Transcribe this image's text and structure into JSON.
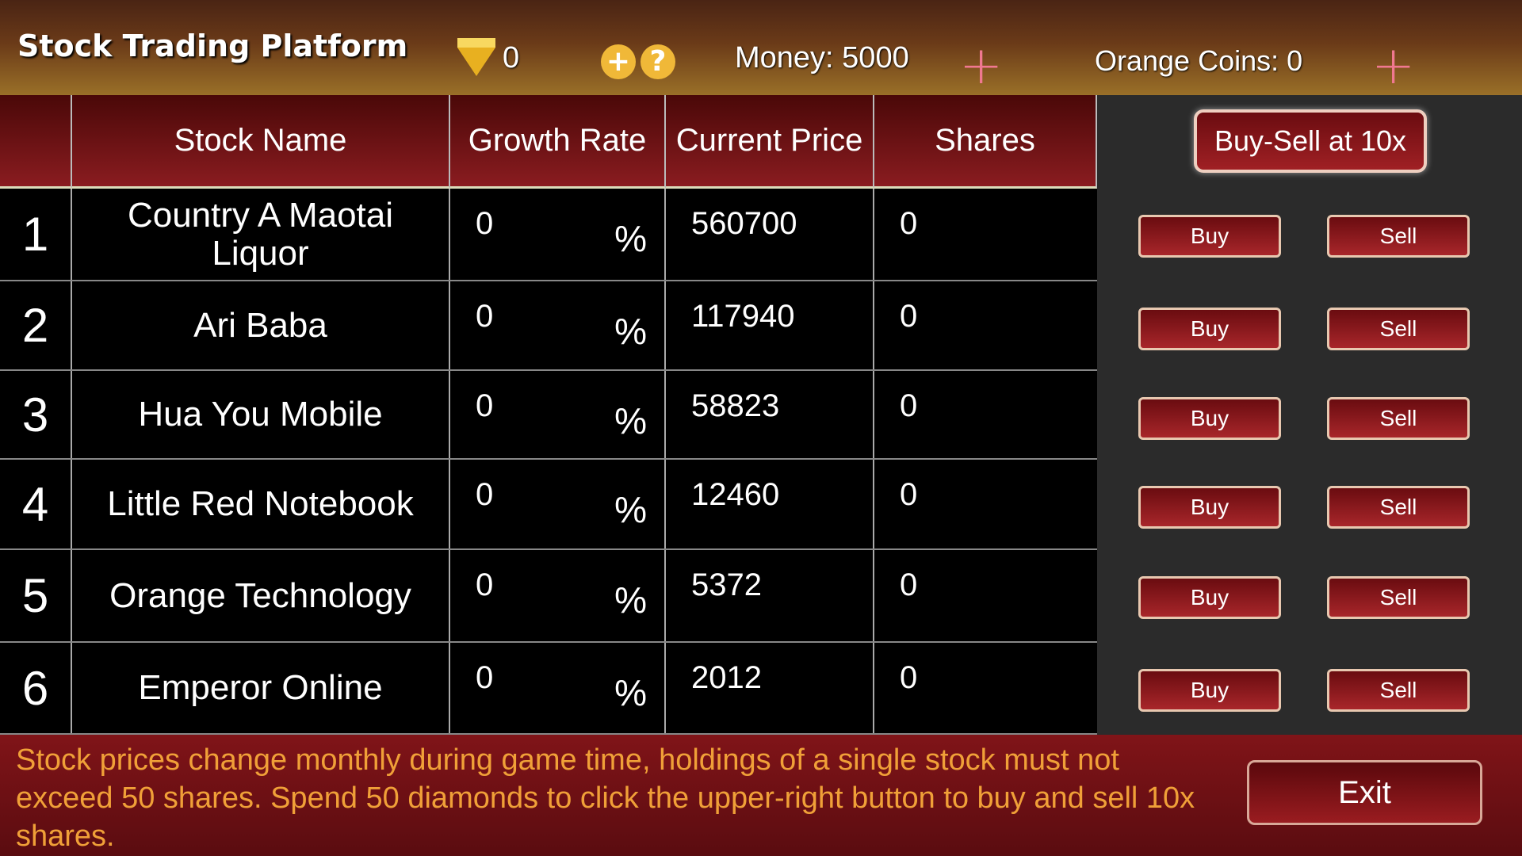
{
  "header": {
    "title": "Stock Trading Platform",
    "diamonds": "0",
    "money": "Money: 5000",
    "orange_coins": "Orange Coins: 0",
    "add_icon": "+",
    "help_icon": "?",
    "plus_icon": "+"
  },
  "table": {
    "columns": [
      "Stock Name",
      "Growth Rate",
      "Current Price",
      "Shares"
    ],
    "rows": [
      {
        "index": "1",
        "name": "Country A Maotai Liquor",
        "growth": "0",
        "pct": "%",
        "price": "560700",
        "shares": "0"
      },
      {
        "index": "2",
        "name": "Ari Baba",
        "growth": "0",
        "pct": "%",
        "price": "117940",
        "shares": "0"
      },
      {
        "index": "3",
        "name": "Hua You Mobile",
        "growth": "0",
        "pct": "%",
        "price": "58823",
        "shares": "0"
      },
      {
        "index": "4",
        "name": "Little Red Notebook",
        "growth": "0",
        "pct": "%",
        "price": "12460",
        "shares": "0"
      },
      {
        "index": "5",
        "name": "Orange Technology",
        "growth": "0",
        "pct": "%",
        "price": "5372",
        "shares": "0"
      },
      {
        "index": "6",
        "name": "Emperor Online",
        "growth": "0",
        "pct": "%",
        "price": "2012",
        "shares": "0"
      }
    ]
  },
  "panel": {
    "multiplier_label": "Buy-Sell at 10x",
    "buy_label": "Buy",
    "sell_label": "Sell"
  },
  "footer": {
    "note": "Stock prices change monthly during game time, holdings of a single stock must not exceed 50 shares. Spend 50 diamonds to click the upper-right button to buy and sell 10x shares.",
    "exit_label": "Exit"
  }
}
